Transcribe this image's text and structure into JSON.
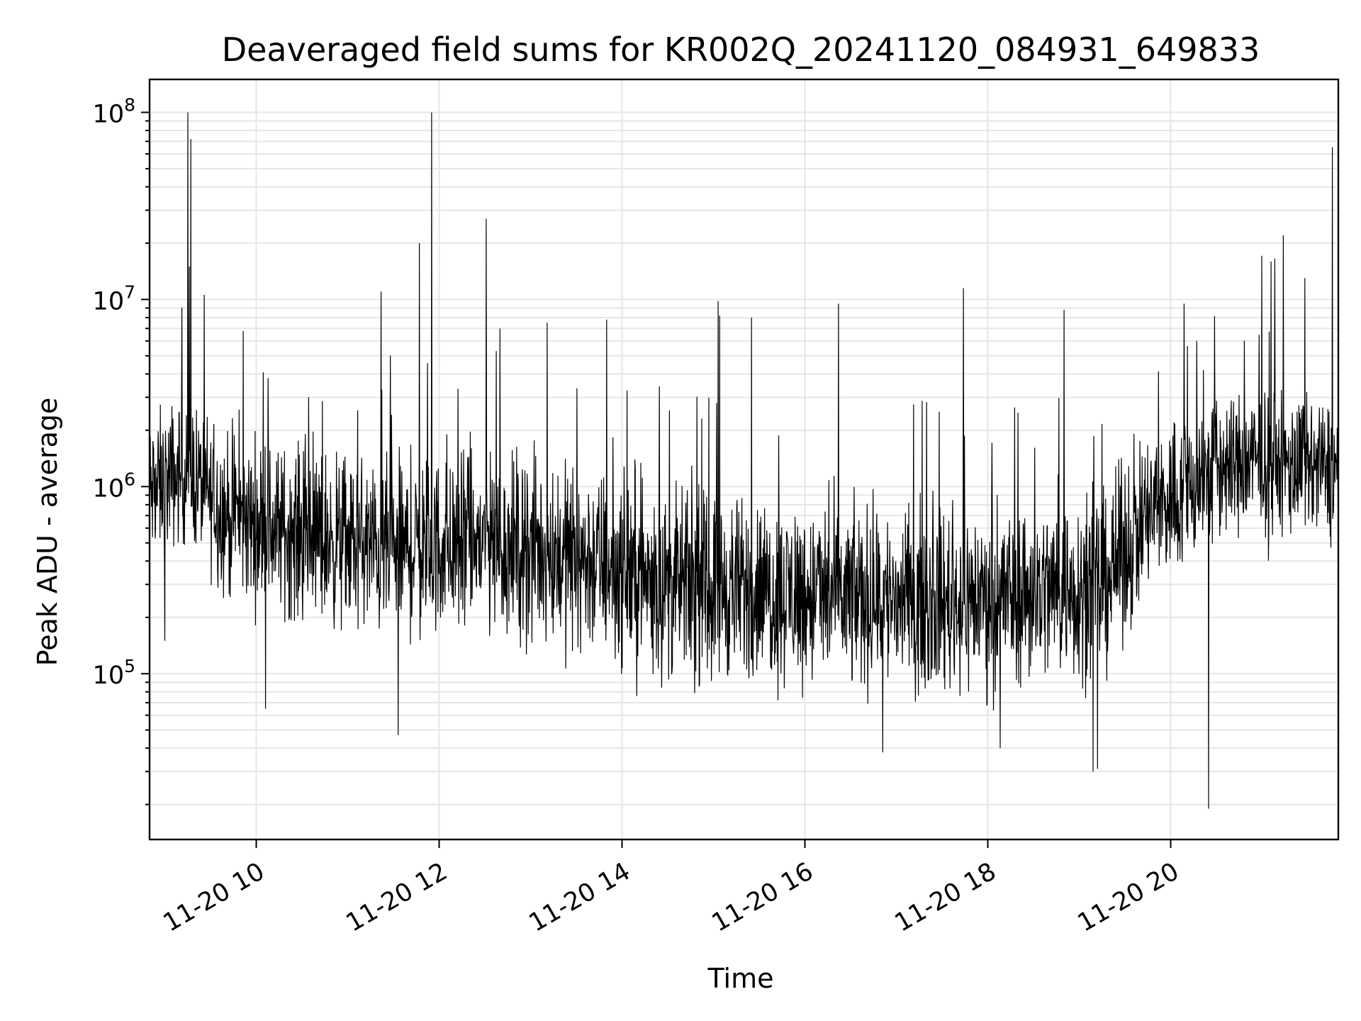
{
  "chart_data": {
    "type": "line",
    "title": "Deaveraged field sums for KR002Q_20241120_084931_649833",
    "xlabel": "Time",
    "ylabel": "Peak ADU - average",
    "x_axis": {
      "kind": "datetime",
      "range": [
        "2024-11-20 08:50",
        "2024-11-20 21:50"
      ],
      "ticks": [
        "2024-11-20 10:00",
        "2024-11-20 12:00",
        "2024-11-20 14:00",
        "2024-11-20 16:00",
        "2024-11-20 18:00",
        "2024-11-20 20:00"
      ],
      "tick_labels": [
        "11-20 10",
        "11-20 12",
        "11-20 14",
        "11-20 16",
        "11-20 18",
        "11-20 20"
      ],
      "tick_label_rotation_deg": 30
    },
    "y_axis": {
      "scale": "log",
      "range": [
        13000,
        150000000
      ],
      "ticks": [
        100000,
        1000000,
        10000000,
        100000000
      ],
      "tick_labels": [
        {
          "base": "10",
          "exp": "5"
        },
        {
          "base": "10",
          "exp": "6"
        },
        {
          "base": "10",
          "exp": "7"
        },
        {
          "base": "10",
          "exp": "8"
        }
      ]
    },
    "grid": "on (major and minor)",
    "legend": "none",
    "series_color": "#000000",
    "envelope": [
      {
        "time": "2024-11-20 08:50",
        "typical": 900000,
        "spread_low": 300000,
        "spread_high": 3000000
      },
      {
        "time": "2024-11-20 09:15",
        "typical": 1200000,
        "spread_low": 450000,
        "spread_high": 4000000
      },
      {
        "time": "2024-11-20 09:40",
        "typical": 700000,
        "spread_low": 200000,
        "spread_high": 2500000
      },
      {
        "time": "2024-11-20 10:30",
        "typical": 550000,
        "spread_low": 150000,
        "spread_high": 2000000
      },
      {
        "time": "2024-11-20 11:30",
        "typical": 450000,
        "spread_low": 120000,
        "spread_high": 1800000
      },
      {
        "time": "2024-11-20 12:30",
        "typical": 500000,
        "spread_low": 120000,
        "spread_high": 2000000
      },
      {
        "time": "2024-11-20 13:30",
        "typical": 420000,
        "spread_low": 100000,
        "spread_high": 1800000
      },
      {
        "time": "2024-11-20 14:30",
        "typical": 300000,
        "spread_low": 70000,
        "spread_high": 1200000
      },
      {
        "time": "2024-11-20 15:30",
        "typical": 280000,
        "spread_low": 65000,
        "spread_high": 1100000
      },
      {
        "time": "2024-11-20 16:30",
        "typical": 260000,
        "spread_low": 60000,
        "spread_high": 1000000
      },
      {
        "time": "2024-11-20 17:30",
        "typical": 240000,
        "spread_low": 60000,
        "spread_high": 1000000
      },
      {
        "time": "2024-11-20 18:30",
        "typical": 280000,
        "spread_low": 65000,
        "spread_high": 1100000
      },
      {
        "time": "2024-11-20 19:15",
        "typical": 300000,
        "spread_low": 70000,
        "spread_high": 1200000
      },
      {
        "time": "2024-11-20 19:45",
        "typical": 700000,
        "spread_low": 200000,
        "spread_high": 2500000
      },
      {
        "time": "2024-11-20 20:30",
        "typical": 1300000,
        "spread_low": 350000,
        "spread_high": 4000000
      },
      {
        "time": "2024-11-20 21:00",
        "typical": 1400000,
        "spread_low": 400000,
        "spread_high": 4000000
      },
      {
        "time": "2024-11-20 21:50",
        "typical": 1200000,
        "spread_low": 400000,
        "spread_high": 3500000
      }
    ],
    "spikes": [
      {
        "time": "2024-11-20 09:15",
        "value": 100000000
      },
      {
        "time": "2024-11-20 09:17",
        "value": 72000000
      },
      {
        "time": "2024-11-20 09:16",
        "value": 15000000
      },
      {
        "time": "2024-11-20 11:22",
        "value": 11000000
      },
      {
        "time": "2024-11-20 11:47",
        "value": 20000000
      },
      {
        "time": "2024-11-20 11:55",
        "value": 100000000
      },
      {
        "time": "2024-11-20 12:31",
        "value": 27000000
      },
      {
        "time": "2024-11-20 12:40",
        "value": 7000000
      },
      {
        "time": "2024-11-20 13:11",
        "value": 7500000
      },
      {
        "time": "2024-11-20 13:50",
        "value": 7800000
      },
      {
        "time": "2024-11-20 15:03",
        "value": 9800000
      },
      {
        "time": "2024-11-20 15:04",
        "value": 8200000
      },
      {
        "time": "2024-11-20 15:25",
        "value": 8000000
      },
      {
        "time": "2024-11-20 16:22",
        "value": 9500000
      },
      {
        "time": "2024-11-20 17:44",
        "value": 11500000
      },
      {
        "time": "2024-11-20 18:50",
        "value": 8800000
      },
      {
        "time": "2024-11-20 20:17",
        "value": 6000000
      },
      {
        "time": "2024-11-20 20:25",
        "value": 11000000
      },
      {
        "time": "2024-11-20 21:14",
        "value": 22000000
      },
      {
        "time": "2024-11-20 21:28",
        "value": 13000000
      },
      {
        "time": "2024-11-20 21:46",
        "value": 65000000
      }
    ],
    "dips": [
      {
        "time": "2024-11-20 09:00",
        "value": 150000
      },
      {
        "time": "2024-11-20 10:06",
        "value": 65000
      },
      {
        "time": "2024-11-20 11:33",
        "value": 47000
      },
      {
        "time": "2024-11-20 16:51",
        "value": 38000
      },
      {
        "time": "2024-11-20 18:08",
        "value": 40000
      },
      {
        "time": "2024-11-20 19:09",
        "value": 30000
      },
      {
        "time": "2024-11-20 19:12",
        "value": 31000
      },
      {
        "time": "2024-11-20 20:25",
        "value": 19000
      }
    ]
  }
}
